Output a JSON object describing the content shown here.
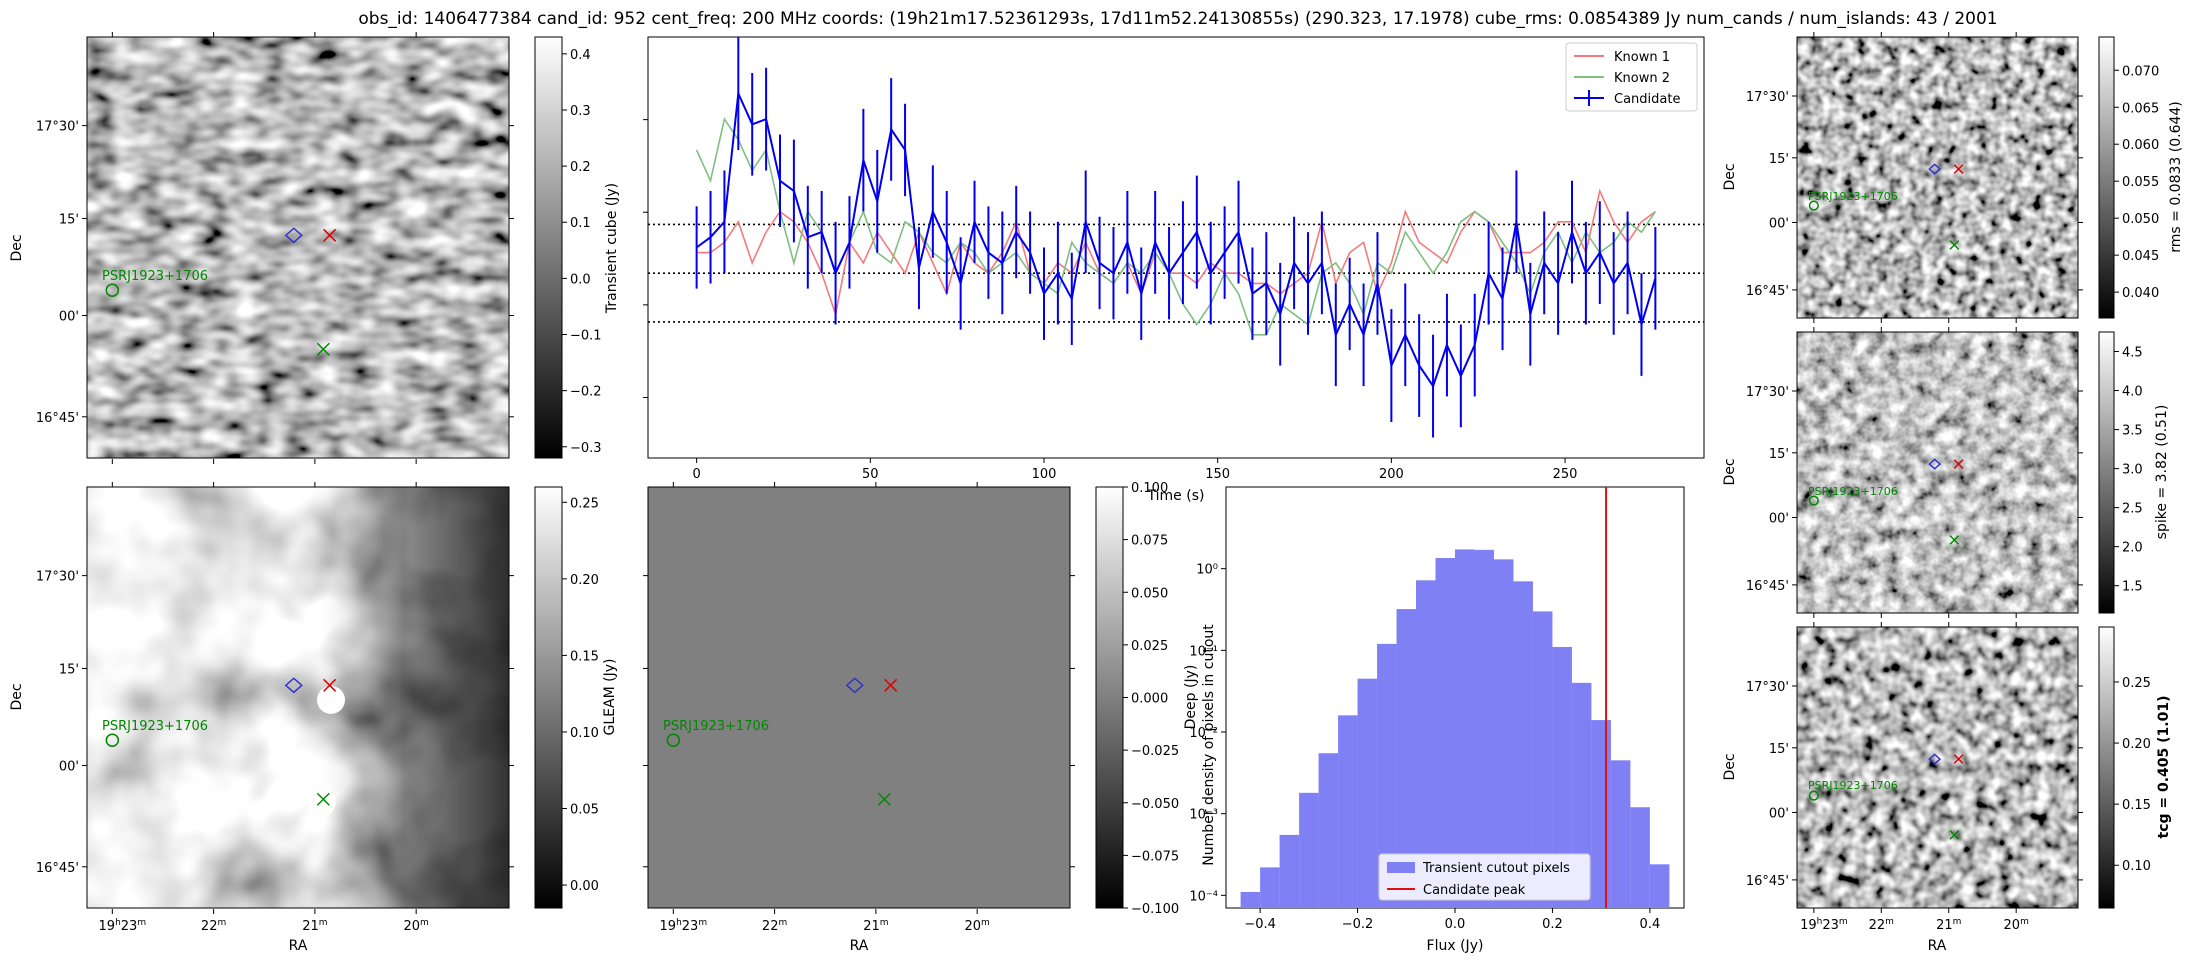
{
  "figure": {
    "title": "obs_id: 1406477384 cand_id: 952 cent_freq: 200 MHz coords: (19h21m17.52361293s, 17d11m52.24130855s) (290.323, 17.1978) cube_rms: 0.0854389 Jy num_cands / num_islands: 43 / 2001"
  },
  "sky_axes": {
    "ra_ticks": [
      "19h23m",
      "22m",
      "21m",
      "20m"
    ],
    "dec_ticks": [
      "17°30'",
      "15'",
      "00'",
      "16°45'"
    ],
    "xlabel": "RA",
    "ylabel": "Dec",
    "source_label": "PSRJ1923+1706"
  },
  "panels": {
    "transient_cube": {
      "colorbar_label": "Transient cube (Jy)",
      "cbar_ticks": [
        "0.4",
        "0.3",
        "0.2",
        "0.1",
        "0.0",
        "−0.1",
        "−0.2",
        "−0.3"
      ],
      "cbar_range": [
        -0.32,
        0.43
      ]
    },
    "gleam": {
      "colorbar_label": "GLEAM (Jy)",
      "cbar_ticks": [
        "0.25",
        "0.20",
        "0.15",
        "0.10",
        "0.05",
        "0.00"
      ],
      "cbar_range": [
        -0.015,
        0.26
      ]
    },
    "deep": {
      "colorbar_label": "Deep (Jy)",
      "cbar_ticks": [
        "0.100",
        "0.075",
        "0.050",
        "0.025",
        "0.000",
        "−0.025",
        "−0.050",
        "−0.075",
        "−0.100"
      ],
      "cbar_range": [
        -0.1,
        0.1
      ]
    },
    "rms": {
      "colorbar_label": "rms = 0.0833 (0.644)",
      "cbar_ticks": [
        "0.070",
        "0.065",
        "0.060",
        "0.055",
        "0.050",
        "0.045",
        "0.040"
      ],
      "cbar_range": [
        0.0365,
        0.0745
      ]
    },
    "spike": {
      "colorbar_label": "spike = 3.82 (0.51)",
      "cbar_ticks": [
        "4.5",
        "4.0",
        "3.5",
        "3.0",
        "2.5",
        "2.0",
        "1.5"
      ],
      "cbar_range": [
        1.15,
        4.75
      ]
    },
    "tcg": {
      "colorbar_label": "tcg = 0.405 (1.01)",
      "cbar_ticks": [
        "0.25",
        "0.20",
        "0.15",
        "0.10"
      ],
      "cbar_range": [
        0.065,
        0.295
      ]
    }
  },
  "chart_data": [
    {
      "type": "line",
      "title": "",
      "xlabel": "Time (s)",
      "ylabel": "",
      "xlim": [
        -14,
        290
      ],
      "ylim": [
        -0.36,
        0.46
      ],
      "xticks": [
        0,
        50,
        100,
        150,
        200,
        250
      ],
      "hlines": [
        0.0,
        0.095,
        -0.095
      ],
      "legend": [
        "Known 1",
        "Known 2",
        "Candidate"
      ],
      "legend_position": "top-right",
      "x": [
        0,
        4,
        8,
        12,
        16,
        20,
        24,
        28,
        32,
        36,
        40,
        44,
        48,
        52,
        56,
        60,
        64,
        68,
        72,
        76,
        80,
        84,
        88,
        92,
        96,
        100,
        104,
        108,
        112,
        116,
        120,
        124,
        128,
        132,
        136,
        140,
        144,
        148,
        152,
        156,
        160,
        164,
        168,
        172,
        176,
        180,
        184,
        188,
        192,
        196,
        200,
        204,
        208,
        212,
        216,
        220,
        224,
        228,
        232,
        236,
        240,
        244,
        248,
        252,
        256,
        260,
        264,
        268,
        272,
        276
      ],
      "series": [
        {
          "name": "Known 1",
          "values": [
            0.04,
            0.04,
            0.06,
            0.1,
            0.02,
            0.08,
            0.12,
            0.1,
            0.06,
            0.0,
            -0.08,
            0.06,
            0.02,
            0.08,
            0.04,
            0.0,
            0.08,
            0.02,
            -0.04,
            0.06,
            0.02,
            0.0,
            0.04,
            0.1,
            0.0,
            -0.02,
            0.02,
            0.0,
            0.06,
            0.0,
            -0.02,
            0.02,
            -0.04,
            0.04,
            0.0,
            0.0,
            -0.02,
            0.02,
            0.0,
            0.0,
            -0.02,
            -0.02,
            -0.04,
            -0.02,
            0.0,
            0.1,
            -0.02,
            0.04,
            0.06,
            -0.04,
            0.02,
            0.12,
            0.06,
            0.04,
            0.02,
            0.08,
            0.12,
            0.1,
            0.04,
            0.04,
            0.04,
            0.06,
            0.1,
            0.1,
            0.04,
            0.16,
            0.1,
            0.06,
            0.1,
            0.12
          ]
        },
        {
          "name": "Known 2",
          "values": [
            0.24,
            0.18,
            0.3,
            0.26,
            0.2,
            0.24,
            0.12,
            0.02,
            0.12,
            0.08,
            0.0,
            0.06,
            0.12,
            0.04,
            0.02,
            0.1,
            0.08,
            0.04,
            0.02,
            0.06,
            0.04,
            0.0,
            0.02,
            0.04,
            0.0,
            -0.02,
            -0.04,
            0.06,
            0.02,
            0.0,
            -0.02,
            0.02,
            0.0,
            0.04,
            0.0,
            -0.06,
            -0.1,
            -0.06,
            0.0,
            -0.04,
            -0.12,
            -0.12,
            -0.06,
            -0.08,
            -0.1,
            0.0,
            0.02,
            -0.02,
            -0.08,
            0.02,
            0.0,
            0.08,
            0.04,
            0.0,
            0.04,
            0.1,
            0.12,
            0.1,
            0.06,
            0.02,
            -0.04,
            0.04,
            0.08,
            0.02,
            0.08,
            0.04,
            0.06,
            0.1,
            0.08,
            0.12
          ]
        },
        {
          "name": "Candidate",
          "values": [
            0.05,
            0.07,
            0.1,
            0.35,
            0.29,
            0.3,
            0.18,
            0.16,
            0.07,
            0.08,
            0.0,
            0.06,
            0.22,
            0.14,
            0.28,
            0.24,
            0.01,
            0.12,
            0.06,
            -0.02,
            0.1,
            0.04,
            0.02,
            0.08,
            0.04,
            -0.04,
            0.0,
            -0.05,
            0.1,
            0.02,
            0.0,
            0.06,
            -0.04,
            0.06,
            0.0,
            0.04,
            0.08,
            0.0,
            0.04,
            0.08,
            -0.04,
            -0.02,
            -0.08,
            0.02,
            -0.02,
            0.02,
            -0.12,
            -0.06,
            -0.12,
            -0.02,
            -0.18,
            -0.12,
            -0.18,
            -0.22,
            -0.14,
            -0.2,
            -0.14,
            0.0,
            -0.05,
            0.1,
            -0.08,
            0.02,
            -0.02,
            0.08,
            0.0,
            0.04,
            -0.02,
            0.02,
            -0.1,
            -0.01
          ]
        }
      ],
      "candidate_errors": [
        0.08,
        0.09,
        0.1,
        0.11,
        0.1,
        0.1,
        0.09,
        0.1,
        0.1,
        0.08,
        0.1,
        0.09,
        0.1,
        0.1,
        0.1,
        0.09,
        0.08,
        0.09,
        0.1,
        0.09,
        0.08,
        0.09,
        0.1,
        0.09,
        0.08,
        0.09,
        0.1,
        0.09,
        0.1,
        0.09,
        0.09,
        0.1,
        0.09,
        0.1,
        0.09,
        0.1,
        0.11,
        0.1,
        0.09,
        0.1,
        0.09,
        0.1,
        0.1,
        0.09,
        0.1,
        0.1,
        0.1,
        0.09,
        0.1,
        0.1,
        0.11,
        0.1,
        0.1,
        0.1,
        0.1,
        0.1,
        0.1,
        0.1,
        0.1,
        0.1,
        0.1,
        0.1,
        0.1,
        0.1,
        0.1,
        0.1,
        0.1,
        0.1,
        0.1,
        0.1
      ]
    },
    {
      "type": "bar",
      "title": "",
      "xlabel": "Flux (Jy)",
      "ylabel": "Number density of pixels in cutout",
      "yscale": "log",
      "xlim": [
        -0.47,
        0.47
      ],
      "ylim": [
        7e-05,
        10
      ],
      "xticks": [
        -0.4,
        -0.2,
        0.0,
        0.2,
        0.4
      ],
      "xtick_labels": [
        "−0.4",
        "−0.2",
        "0.0",
        "0.2",
        "0.4"
      ],
      "ytick_labels": [
        "10⁰",
        "10⁻¹",
        "10⁻²",
        "10⁻³",
        "10⁻⁴"
      ],
      "ytick_values": [
        1,
        0.1,
        0.01,
        0.001,
        0.0001
      ],
      "legend": [
        "Transient cutout pixels",
        "Candidate peak"
      ],
      "legend_position": "lower-center",
      "bin_edges": [
        -0.44,
        -0.4,
        -0.36,
        -0.32,
        -0.28,
        -0.24,
        -0.2,
        -0.16,
        -0.12,
        -0.08,
        -0.04,
        0.0,
        0.04,
        0.08,
        0.12,
        0.16,
        0.2,
        0.24,
        0.28,
        0.32,
        0.36,
        0.4,
        0.44
      ],
      "values": [
        0.00011,
        0.00022,
        0.00055,
        0.0018,
        0.0055,
        0.016,
        0.045,
        0.12,
        0.32,
        0.72,
        1.35,
        1.72,
        1.7,
        1.3,
        0.7,
        0.3,
        0.11,
        0.04,
        0.014,
        0.0045,
        0.0012,
        0.00024
      ],
      "candidate_peak": 0.31
    }
  ],
  "colors": {
    "known1": "#f47a7a",
    "known2": "#7fbf7f",
    "candidate": "#0000ee",
    "hist": "#8080f5",
    "peak": "#e01010",
    "marker_green": "#008800",
    "marker_red": "#dd0000",
    "marker_blue": "#3333cc"
  }
}
